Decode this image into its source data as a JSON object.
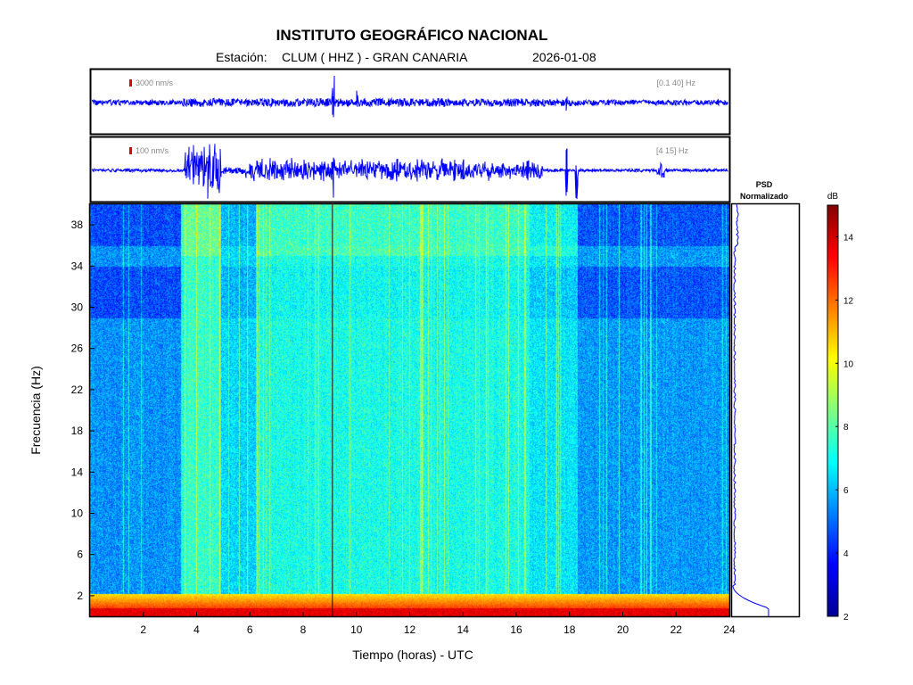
{
  "header": {
    "title": "INSTITUTO GEOGRÁFICO NACIONAL",
    "station_prefix": "Estación:",
    "station": "CLUM ( HHZ ) - GRAN CANARIA",
    "date": "2026-01-08"
  },
  "traces": [
    {
      "scale_label": "3000 nm/s",
      "band_label": "[0.1 40] Hz",
      "color": "#0000ff"
    },
    {
      "scale_label": "100 nm/s",
      "band_label": "[4 15] Hz",
      "color": "#0000ff"
    }
  ],
  "psd": {
    "title_line1": "PSD",
    "title_line2": "Normalizado"
  },
  "chart_data": {
    "type": "heatmap",
    "xlabel": "Tiempo (horas) - UTC",
    "ylabel": "Frecuencia  (Hz)",
    "xlim": [
      0,
      24
    ],
    "ylim": [
      0,
      40
    ],
    "x_ticks": [
      2,
      4,
      6,
      8,
      10,
      12,
      14,
      16,
      18,
      20,
      22,
      24
    ],
    "y_ticks": [
      2,
      6,
      10,
      14,
      18,
      22,
      26,
      30,
      34,
      38
    ],
    "colorbar": {
      "label": "dB",
      "range": [
        2,
        15
      ],
      "ticks": [
        2,
        4,
        6,
        8,
        10,
        12,
        14
      ],
      "colormap": "jet"
    },
    "event_marker_hour": 9.1,
    "high_noise_band_hours": [
      3.5,
      4.9
    ],
    "quiet_hours": [
      [
        0,
        3.4
      ],
      [
        18.3,
        24
      ]
    ],
    "active_hours": [
      3.5,
      18.3
    ]
  }
}
